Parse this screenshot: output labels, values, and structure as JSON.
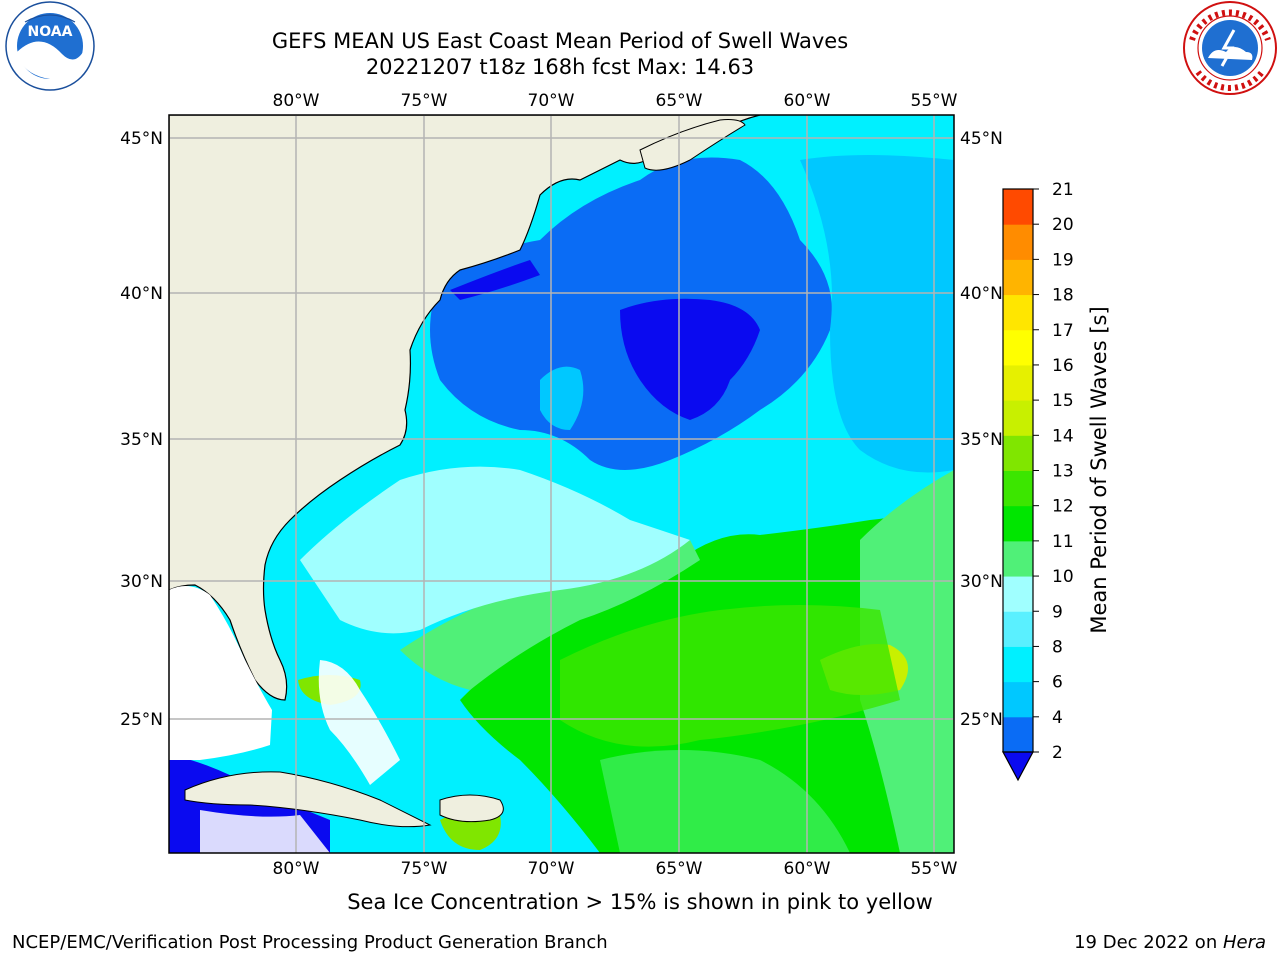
{
  "header": {
    "title_line1": "GEFS MEAN US East Coast Mean Period of Swell Waves",
    "title_line2": "20221207 t18z 168h fcst   Max: 14.63"
  },
  "logos": {
    "left": {
      "icon": "noaa-logo-icon",
      "text": "NOAA"
    },
    "right": {
      "icon": "nws-logo-icon"
    }
  },
  "map": {
    "lon_labels": [
      "80°W",
      "75°W",
      "70°W",
      "65°W",
      "60°W",
      "55°W"
    ],
    "lat_labels": [
      "45°N",
      "40°N",
      "35°N",
      "30°N",
      "25°N"
    ],
    "colors": {
      "land": "#efefdf",
      "grid": "#b4b4b4",
      "coast": "#000000",
      "nodata": "#ffffff"
    }
  },
  "colorbar": {
    "label": "Mean Period of Swell Waves [s]",
    "ticks": [
      "2",
      "4",
      "6",
      "8",
      "9",
      "10",
      "11",
      "12",
      "13",
      "14",
      "15",
      "16",
      "17",
      "18",
      "19",
      "20",
      "21"
    ],
    "colors": [
      "#0a0af0",
      "#0a6cf5",
      "#00c8ff",
      "#00f0ff",
      "#5af0ff",
      "#a0ffff",
      "#50f078",
      "#00e600",
      "#3ce600",
      "#80e600",
      "#c8f000",
      "#e6f000",
      "#ffff00",
      "#ffe600",
      "#ffb400",
      "#ff8c00",
      "#ff4a00",
      "#ff1e00",
      "#ff0000"
    ]
  },
  "caption": "Sea Ice Concentration > 15% is shown in pink to yellow",
  "footer": {
    "left": "NCEP/EMC/Verification Post Processing Product Generation Branch",
    "right_prefix": "19 Dec 2022 on ",
    "right_host": "Hera"
  }
}
